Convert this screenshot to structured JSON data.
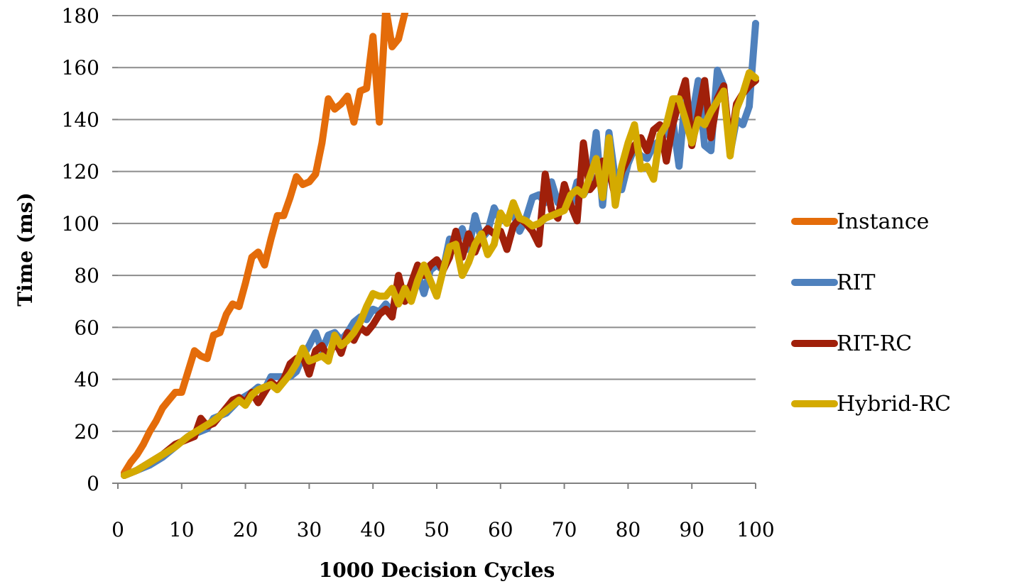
{
  "chart_data": {
    "type": "line",
    "title": "",
    "xlabel": "1000 Decision Cycles",
    "ylabel": "Time (ms)",
    "xlim": [
      0,
      100
    ],
    "ylim": [
      0,
      180
    ],
    "x_ticks": [
      0,
      10,
      20,
      30,
      40,
      50,
      60,
      70,
      80,
      90,
      100
    ],
    "y_ticks": [
      0,
      20,
      40,
      60,
      80,
      100,
      120,
      140,
      160,
      180
    ],
    "grid": "horizontal",
    "legend_position": "right",
    "series": [
      {
        "name": "Instance",
        "color": "#E46C0A",
        "points": [
          [
            1,
            4
          ],
          [
            2,
            8
          ],
          [
            3,
            11
          ],
          [
            4,
            15
          ],
          [
            5,
            20
          ],
          [
            6,
            24
          ],
          [
            7,
            29
          ],
          [
            8,
            32
          ],
          [
            9,
            35
          ],
          [
            10,
            35
          ],
          [
            11,
            43
          ],
          [
            12,
            51
          ],
          [
            13,
            49
          ],
          [
            14,
            48
          ],
          [
            15,
            57
          ],
          [
            16,
            58
          ],
          [
            17,
            65
          ],
          [
            18,
            69
          ],
          [
            19,
            68
          ],
          [
            20,
            77
          ],
          [
            21,
            87
          ],
          [
            22,
            89
          ],
          [
            23,
            84
          ],
          [
            24,
            94
          ],
          [
            25,
            103
          ],
          [
            26,
            103
          ],
          [
            27,
            110
          ],
          [
            28,
            118
          ],
          [
            29,
            115
          ],
          [
            30,
            116
          ],
          [
            31,
            119
          ],
          [
            32,
            131
          ],
          [
            33,
            148
          ],
          [
            34,
            144
          ],
          [
            35,
            146
          ],
          [
            36,
            149
          ],
          [
            37,
            139
          ],
          [
            38,
            151
          ],
          [
            39,
            152
          ],
          [
            40,
            172
          ],
          [
            41,
            139
          ],
          [
            42,
            183
          ],
          [
            43,
            168
          ],
          [
            44,
            171
          ],
          [
            45,
            181
          ]
        ]
      },
      {
        "name": "RIT",
        "color": "#4F81BD",
        "points": [
          [
            1,
            3
          ],
          [
            3,
            5
          ],
          [
            5,
            7
          ],
          [
            7,
            10
          ],
          [
            9,
            14
          ],
          [
            11,
            18
          ],
          [
            13,
            20
          ],
          [
            14,
            21
          ],
          [
            15,
            25
          ],
          [
            17,
            27
          ],
          [
            19,
            32
          ],
          [
            21,
            35
          ],
          [
            22,
            37
          ],
          [
            23,
            36
          ],
          [
            24,
            41
          ],
          [
            25,
            41
          ],
          [
            27,
            41
          ],
          [
            28,
            43
          ],
          [
            29,
            49
          ],
          [
            30,
            53
          ],
          [
            31,
            58
          ],
          [
            32,
            51
          ],
          [
            33,
            57
          ],
          [
            34,
            58
          ],
          [
            35,
            55
          ],
          [
            36,
            58
          ],
          [
            37,
            62
          ],
          [
            38,
            64
          ],
          [
            39,
            63
          ],
          [
            40,
            67
          ],
          [
            41,
            66
          ],
          [
            42,
            69
          ],
          [
            43,
            66
          ],
          [
            44,
            72
          ],
          [
            45,
            74
          ],
          [
            46,
            76
          ],
          [
            47,
            81
          ],
          [
            48,
            73
          ],
          [
            49,
            82
          ],
          [
            50,
            84
          ],
          [
            51,
            82
          ],
          [
            52,
            94
          ],
          [
            53,
            92
          ],
          [
            54,
            98
          ],
          [
            55,
            90
          ],
          [
            56,
            103
          ],
          [
            57,
            94
          ],
          [
            58,
            97
          ],
          [
            59,
            106
          ],
          [
            60,
            101
          ],
          [
            61,
            102
          ],
          [
            62,
            104
          ],
          [
            63,
            97
          ],
          [
            64,
            102
          ],
          [
            65,
            110
          ],
          [
            66,
            111
          ],
          [
            67,
            108
          ],
          [
            68,
            116
          ],
          [
            69,
            108
          ],
          [
            70,
            112
          ],
          [
            71,
            107
          ],
          [
            72,
            116
          ],
          [
            73,
            111
          ],
          [
            74,
            115
          ],
          [
            75,
            135
          ],
          [
            76,
            107
          ],
          [
            77,
            135
          ],
          [
            78,
            117
          ],
          [
            79,
            113
          ],
          [
            80,
            123
          ],
          [
            81,
            129
          ],
          [
            82,
            126
          ],
          [
            83,
            125
          ],
          [
            84,
            130
          ],
          [
            85,
            132
          ],
          [
            86,
            135
          ],
          [
            87,
            140
          ],
          [
            88,
            122
          ],
          [
            89,
            150
          ],
          [
            90,
            140
          ],
          [
            91,
            155
          ],
          [
            92,
            130
          ],
          [
            93,
            128
          ],
          [
            94,
            159
          ],
          [
            95,
            153
          ],
          [
            96,
            127
          ],
          [
            97,
            140
          ],
          [
            98,
            138
          ],
          [
            99,
            145
          ],
          [
            100,
            177
          ]
        ]
      },
      {
        "name": "RIT-RC",
        "color": "#A0200A",
        "points": [
          [
            1,
            3
          ],
          [
            3,
            5
          ],
          [
            5,
            8
          ],
          [
            7,
            11
          ],
          [
            9,
            15
          ],
          [
            11,
            17
          ],
          [
            12,
            18
          ],
          [
            13,
            25
          ],
          [
            14,
            22
          ],
          [
            15,
            23
          ],
          [
            16,
            26
          ],
          [
            17,
            29
          ],
          [
            18,
            32
          ],
          [
            19,
            33
          ],
          [
            20,
            31
          ],
          [
            21,
            35
          ],
          [
            22,
            31
          ],
          [
            23,
            35
          ],
          [
            24,
            39
          ],
          [
            25,
            37
          ],
          [
            26,
            40
          ],
          [
            27,
            46
          ],
          [
            28,
            48
          ],
          [
            29,
            49
          ],
          [
            30,
            42
          ],
          [
            31,
            51
          ],
          [
            32,
            53
          ],
          [
            33,
            48
          ],
          [
            34,
            55
          ],
          [
            35,
            50
          ],
          [
            36,
            58
          ],
          [
            37,
            55
          ],
          [
            38,
            60
          ],
          [
            39,
            58
          ],
          [
            40,
            61
          ],
          [
            41,
            65
          ],
          [
            42,
            67
          ],
          [
            43,
            64
          ],
          [
            44,
            80
          ],
          [
            45,
            70
          ],
          [
            46,
            77
          ],
          [
            47,
            84
          ],
          [
            48,
            80
          ],
          [
            49,
            84
          ],
          [
            50,
            86
          ],
          [
            51,
            82
          ],
          [
            52,
            87
          ],
          [
            53,
            97
          ],
          [
            54,
            87
          ],
          [
            55,
            96
          ],
          [
            56,
            89
          ],
          [
            57,
            95
          ],
          [
            58,
            98
          ],
          [
            59,
            96
          ],
          [
            60,
            97
          ],
          [
            61,
            90
          ],
          [
            62,
            99
          ],
          [
            63,
            102
          ],
          [
            64,
            100
          ],
          [
            65,
            97
          ],
          [
            66,
            92
          ],
          [
            67,
            119
          ],
          [
            68,
            105
          ],
          [
            69,
            102
          ],
          [
            70,
            115
          ],
          [
            71,
            107
          ],
          [
            72,
            101
          ],
          [
            73,
            131
          ],
          [
            74,
            113
          ],
          [
            75,
            116
          ],
          [
            76,
            124
          ],
          [
            77,
            121
          ],
          [
            78,
            110
          ],
          [
            79,
            120
          ],
          [
            80,
            125
          ],
          [
            81,
            130
          ],
          [
            82,
            133
          ],
          [
            83,
            128
          ],
          [
            84,
            136
          ],
          [
            85,
            138
          ],
          [
            86,
            124
          ],
          [
            87,
            138
          ],
          [
            88,
            147
          ],
          [
            89,
            155
          ],
          [
            90,
            130
          ],
          [
            91,
            142
          ],
          [
            92,
            155
          ],
          [
            93,
            133
          ],
          [
            94,
            148
          ],
          [
            95,
            153
          ],
          [
            96,
            129
          ],
          [
            97,
            146
          ],
          [
            98,
            150
          ],
          [
            99,
            153
          ],
          [
            100,
            155
          ]
        ]
      },
      {
        "name": "Hybrid-RC",
        "color": "#D4AA00",
        "points": [
          [
            1,
            3
          ],
          [
            3,
            5
          ],
          [
            5,
            8
          ],
          [
            7,
            11
          ],
          [
            9,
            14
          ],
          [
            11,
            18
          ],
          [
            13,
            21
          ],
          [
            15,
            24
          ],
          [
            17,
            28
          ],
          [
            19,
            32
          ],
          [
            20,
            30
          ],
          [
            21,
            34
          ],
          [
            22,
            36
          ],
          [
            23,
            37
          ],
          [
            24,
            38
          ],
          [
            25,
            36
          ],
          [
            26,
            39
          ],
          [
            27,
            42
          ],
          [
            28,
            46
          ],
          [
            29,
            52
          ],
          [
            30,
            47
          ],
          [
            31,
            48
          ],
          [
            32,
            49
          ],
          [
            33,
            47
          ],
          [
            34,
            57
          ],
          [
            35,
            53
          ],
          [
            36,
            55
          ],
          [
            37,
            58
          ],
          [
            38,
            62
          ],
          [
            39,
            68
          ],
          [
            40,
            73
          ],
          [
            41,
            72
          ],
          [
            42,
            72
          ],
          [
            43,
            75
          ],
          [
            44,
            69
          ],
          [
            45,
            75
          ],
          [
            46,
            70
          ],
          [
            47,
            78
          ],
          [
            48,
            84
          ],
          [
            49,
            78
          ],
          [
            50,
            72
          ],
          [
            51,
            82
          ],
          [
            52,
            91
          ],
          [
            53,
            92
          ],
          [
            54,
            80
          ],
          [
            55,
            85
          ],
          [
            56,
            92
          ],
          [
            57,
            96
          ],
          [
            58,
            88
          ],
          [
            59,
            92
          ],
          [
            60,
            104
          ],
          [
            61,
            100
          ],
          [
            62,
            108
          ],
          [
            63,
            102
          ],
          [
            64,
            101
          ],
          [
            65,
            99
          ],
          [
            66,
            100
          ],
          [
            67,
            102
          ],
          [
            68,
            103
          ],
          [
            69,
            104
          ],
          [
            70,
            105
          ],
          [
            71,
            111
          ],
          [
            72,
            113
          ],
          [
            73,
            111
          ],
          [
            74,
            118
          ],
          [
            75,
            125
          ],
          [
            76,
            110
          ],
          [
            77,
            133
          ],
          [
            78,
            107
          ],
          [
            79,
            122
          ],
          [
            80,
            131
          ],
          [
            81,
            138
          ],
          [
            82,
            121
          ],
          [
            83,
            122
          ],
          [
            84,
            117
          ],
          [
            85,
            134
          ],
          [
            86,
            138
          ],
          [
            87,
            148
          ],
          [
            88,
            148
          ],
          [
            89,
            140
          ],
          [
            90,
            131
          ],
          [
            91,
            140
          ],
          [
            92,
            138
          ],
          [
            93,
            143
          ],
          [
            94,
            147
          ],
          [
            95,
            151
          ],
          [
            96,
            126
          ],
          [
            97,
            144
          ],
          [
            98,
            150
          ],
          [
            99,
            158
          ],
          [
            100,
            156
          ]
        ]
      }
    ]
  }
}
